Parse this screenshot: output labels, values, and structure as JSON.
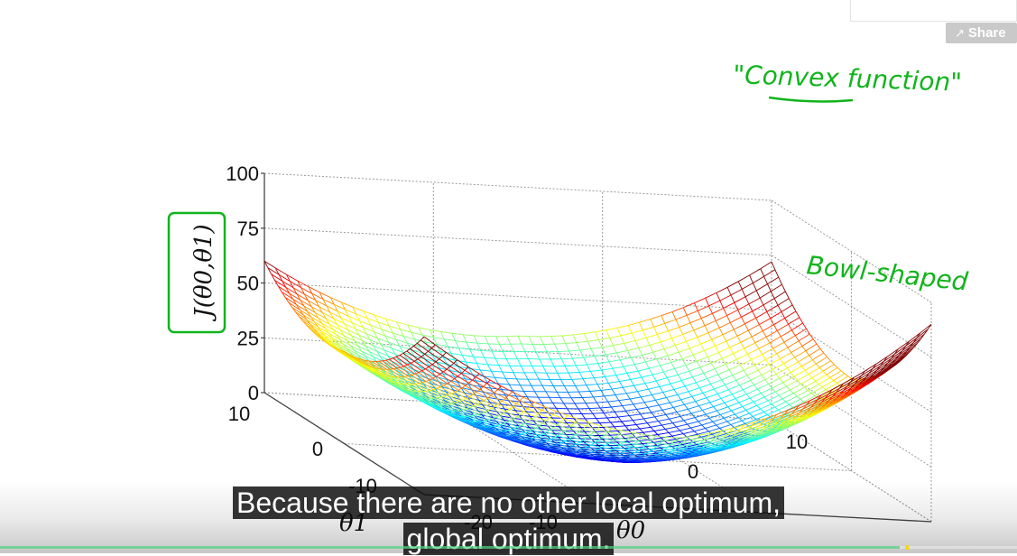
{
  "share": {
    "label": "Share",
    "icon": "share-icon"
  },
  "annotations": {
    "convex": "\"Convex function\"",
    "bowl": "Bowl-shaped",
    "color": "#11b41b"
  },
  "captions": {
    "line1": "Because there are no other local optimum,",
    "line2": "global optimum."
  },
  "progress": {
    "fraction": 0.885,
    "marker_fraction": 0.89,
    "played_color": "#22c55e",
    "marker_color": "#f5d90a"
  },
  "chart_data": {
    "type": "surface",
    "function": "J(θ0,θ1) bowl-shaped quadratic",
    "zlabel": "J(θ0,θ1)",
    "xlabel": "θ0",
    "ylabel": "θ1",
    "z_ticks": [
      "100",
      "75",
      "50",
      "25",
      "0"
    ],
    "zlim": [
      0,
      100
    ],
    "theta0_ticks_visible": [
      "10",
      "0",
      "-10",
      "-20"
    ],
    "theta1_ticks_visible": [
      "10",
      "0",
      "-10"
    ],
    "x_range": [
      -20,
      10
    ],
    "y_range": [
      -10,
      10
    ],
    "colormap": "jet",
    "grid": true
  }
}
